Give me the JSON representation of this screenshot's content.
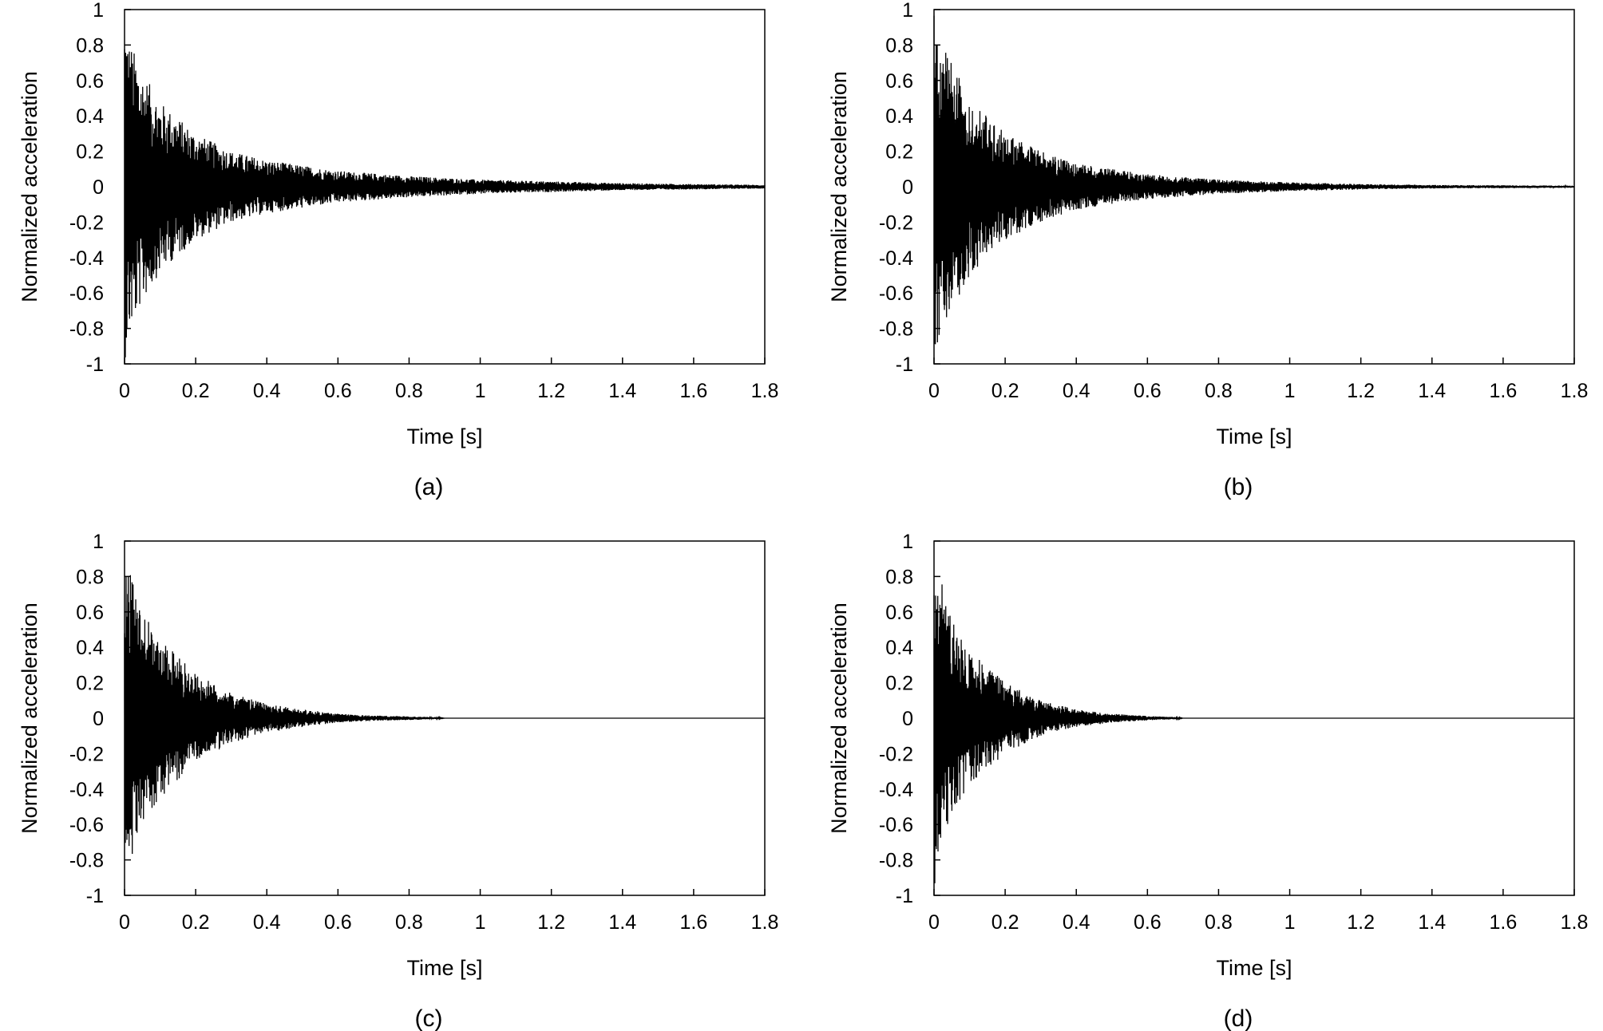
{
  "chart_data": [
    {
      "type": "line",
      "caption": "(a)",
      "xlabel": "Time [s]",
      "ylabel": "Normalized acceleration",
      "xlim": [
        0,
        1.8
      ],
      "ylim": [
        -1,
        1
      ],
      "xticks": [
        "0",
        "0.2",
        "0.4",
        "0.6",
        "0.8",
        "1",
        "1.2",
        "1.4",
        "1.6",
        "1.8"
      ],
      "yticks": [
        "1",
        "0.8",
        "0.6",
        "0.4",
        "0.2",
        "0",
        "-0.2",
        "-0.4",
        "-0.6",
        "-0.8",
        "-1"
      ],
      "grid": false,
      "color": "#000000",
      "series": [
        {
          "envelope": {
            "t": [
              0,
              0.01,
              0.05,
              0.1,
              0.2,
              0.3,
              0.4,
              0.5,
              0.6,
              0.8,
              1.0,
              1.2,
              1.4,
              1.6,
              1.8
            ],
            "amp": [
              1.0,
              0.85,
              0.65,
              0.48,
              0.3,
              0.2,
              0.15,
              0.12,
              0.09,
              0.06,
              0.04,
              0.03,
              0.02,
              0.015,
              0.01
            ]
          }
        }
      ]
    },
    {
      "type": "line",
      "caption": "(b)",
      "xlabel": "Time [s]",
      "ylabel": "Normalized acceleration",
      "xlim": [
        0,
        1.8
      ],
      "ylim": [
        -1,
        1
      ],
      "xticks": [
        "0",
        "0.2",
        "0.4",
        "0.6",
        "0.8",
        "1",
        "1.2",
        "1.4",
        "1.6",
        "1.8"
      ],
      "yticks": [
        "1",
        "0.8",
        "0.6",
        "0.4",
        "0.2",
        "0",
        "-0.2",
        "-0.4",
        "-0.6",
        "-0.8",
        "-1"
      ],
      "grid": false,
      "color": "#000000",
      "series": [
        {
          "envelope": {
            "t": [
              0,
              0.01,
              0.05,
              0.1,
              0.2,
              0.3,
              0.4,
              0.5,
              0.6,
              0.8,
              1.0,
              1.2,
              1.4,
              1.6,
              1.8
            ],
            "amp": [
              1.0,
              0.9,
              0.7,
              0.5,
              0.3,
              0.2,
              0.13,
              0.1,
              0.07,
              0.04,
              0.025,
              0.015,
              0.01,
              0.008,
              0.006
            ]
          }
        }
      ]
    },
    {
      "type": "line",
      "caption": "(c)",
      "xlabel": "Time [s]",
      "ylabel": "Normalized acceleration",
      "xlim": [
        0,
        1.8
      ],
      "ylim": [
        -1,
        1
      ],
      "xticks": [
        "0",
        "0.2",
        "0.4",
        "0.6",
        "0.8",
        "1",
        "1.2",
        "1.4",
        "1.6",
        "1.8"
      ],
      "yticks": [
        "1",
        "0.8",
        "0.6",
        "0.4",
        "0.2",
        "0",
        "-0.2",
        "-0.4",
        "-0.6",
        "-0.8",
        "-1"
      ],
      "grid": false,
      "color": "#000000",
      "series": [
        {
          "envelope": {
            "t": [
              0,
              0.01,
              0.05,
              0.1,
              0.2,
              0.3,
              0.4,
              0.5,
              0.6,
              0.7,
              0.8,
              0.88,
              0.9,
              1.8
            ],
            "amp": [
              0.95,
              0.85,
              0.6,
              0.45,
              0.25,
              0.14,
              0.08,
              0.05,
              0.025,
              0.015,
              0.01,
              0.005,
              0,
              0
            ]
          }
        }
      ]
    },
    {
      "type": "line",
      "caption": "(d)",
      "xlabel": "Time [s]",
      "ylabel": "Normalized acceleration",
      "xlim": [
        0,
        1.8
      ],
      "ylim": [
        -1,
        1
      ],
      "xticks": [
        "0",
        "0.2",
        "0.4",
        "0.6",
        "0.8",
        "1",
        "1.2",
        "1.4",
        "1.6",
        "1.8"
      ],
      "yticks": [
        "1",
        "0.8",
        "0.6",
        "0.4",
        "0.2",
        "0",
        "-0.2",
        "-0.4",
        "-0.6",
        "-0.8",
        "-1"
      ],
      "grid": false,
      "color": "#000000",
      "series": [
        {
          "envelope": {
            "t": [
              0,
              0.01,
              0.05,
              0.1,
              0.2,
              0.3,
              0.4,
              0.5,
              0.6,
              0.68,
              0.7,
              1.8
            ],
            "amp": [
              1.0,
              0.85,
              0.55,
              0.38,
              0.2,
              0.1,
              0.05,
              0.025,
              0.012,
              0.006,
              0,
              0
            ]
          }
        }
      ]
    }
  ]
}
